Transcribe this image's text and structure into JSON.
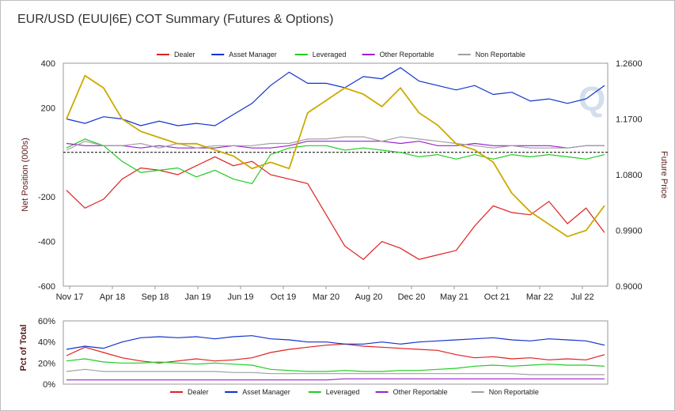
{
  "chart_data": [
    {
      "type": "line",
      "title": "EUR/USD (EUU|6E) COT Summary (Futures & Options)",
      "ylabel": "Net Position (000s)",
      "y2label": "Future Price",
      "ylim": [
        -600,
        400
      ],
      "y2lim": [
        0.9,
        1.26
      ],
      "yticks": [
        400,
        200,
        -200,
        -400,
        -600
      ],
      "yticks_right": [
        "1.2600",
        "1.1700",
        "1.0800",
        "0.9900",
        "0.9000"
      ],
      "xticks": [
        "Nov 17",
        "Apr 18",
        "Sep 18",
        "Jan 19",
        "Jun 19",
        "Oct 19",
        "Mar 20",
        "Aug 20",
        "Dec 20",
        "May 21",
        "Oct 21",
        "Mar 22",
        "Jul 22"
      ],
      "legend": "top",
      "zero_line": true,
      "series": [
        {
          "name": "Dealer",
          "color": "#e02020",
          "values": [
            -170,
            -250,
            -210,
            -120,
            -70,
            -80,
            -100,
            -60,
            -20,
            -60,
            -40,
            -100,
            -120,
            -140,
            -280,
            -420,
            -480,
            -400,
            -430,
            -480,
            -460,
            -440,
            -330,
            -240,
            -270,
            -280,
            -220,
            -320,
            -250,
            -360
          ]
        },
        {
          "name": "Asset Manager",
          "color": "#1133cc",
          "values": [
            150,
            130,
            160,
            150,
            120,
            140,
            120,
            130,
            120,
            170,
            220,
            300,
            360,
            310,
            310,
            290,
            340,
            330,
            380,
            320,
            300,
            280,
            300,
            260,
            270,
            230,
            240,
            220,
            240,
            300
          ]
        },
        {
          "name": "Leveraged",
          "color": "#22cc22",
          "values": [
            20,
            60,
            30,
            -40,
            -90,
            -80,
            -70,
            -110,
            -80,
            -120,
            -140,
            -10,
            20,
            30,
            30,
            10,
            20,
            10,
            0,
            -20,
            -10,
            -30,
            -10,
            -30,
            -10,
            -20,
            -10,
            -20,
            -30,
            -10
          ]
        },
        {
          "name": "Other Reportable",
          "color": "#9922cc",
          "values": [
            40,
            30,
            30,
            30,
            20,
            30,
            20,
            20,
            20,
            30,
            20,
            20,
            30,
            50,
            50,
            50,
            50,
            50,
            40,
            50,
            30,
            30,
            40,
            30,
            30,
            30,
            30,
            20,
            30,
            30
          ]
        },
        {
          "name": "Non Reportable",
          "color": "#a0a0a0",
          "values": [
            10,
            50,
            30,
            30,
            40,
            20,
            40,
            20,
            30,
            30,
            30,
            40,
            40,
            60,
            60,
            70,
            70,
            50,
            70,
            60,
            50,
            40,
            30,
            20,
            30,
            20,
            20,
            20,
            30,
            30
          ]
        }
      ],
      "price": {
        "color": "#ccaa00",
        "values": [
          1.17,
          1.24,
          1.22,
          1.17,
          1.15,
          1.14,
          1.13,
          1.13,
          1.12,
          1.11,
          1.09,
          1.1,
          1.09,
          1.18,
          1.2,
          1.22,
          1.21,
          1.19,
          1.22,
          1.18,
          1.16,
          1.13,
          1.12,
          1.1,
          1.05,
          1.02,
          1.0,
          0.98,
          0.99,
          1.03
        ]
      }
    },
    {
      "type": "line",
      "ylabel": "Pct of Total",
      "ylim": [
        0,
        60
      ],
      "yticks": [
        "60%",
        "40%",
        "20%",
        "0%"
      ],
      "legend": "bottom",
      "series": [
        {
          "name": "Dealer",
          "color": "#e02020",
          "values": [
            27,
            35,
            30,
            25,
            22,
            20,
            22,
            24,
            22,
            23,
            25,
            30,
            33,
            35,
            37,
            38,
            36,
            35,
            34,
            33,
            32,
            28,
            25,
            26,
            24,
            25,
            23,
            24,
            23,
            28
          ]
        },
        {
          "name": "Asset Manager",
          "color": "#1133cc",
          "values": [
            33,
            36,
            34,
            40,
            44,
            45,
            44,
            45,
            43,
            45,
            46,
            43,
            42,
            40,
            40,
            38,
            38,
            40,
            38,
            40,
            41,
            42,
            43,
            44,
            42,
            41,
            43,
            42,
            41,
            37
          ]
        },
        {
          "name": "Leveraged",
          "color": "#22cc22",
          "values": [
            22,
            24,
            21,
            20,
            20,
            21,
            20,
            19,
            20,
            19,
            18,
            14,
            13,
            12,
            12,
            13,
            12,
            12,
            13,
            13,
            14,
            15,
            17,
            18,
            17,
            18,
            19,
            18,
            18,
            17
          ]
        },
        {
          "name": "Other Reportable",
          "color": "#9922cc",
          "values": [
            4,
            4,
            4,
            4,
            4,
            4,
            4,
            4,
            4,
            4,
            4,
            4,
            4,
            4,
            4,
            5,
            5,
            5,
            5,
            5,
            5,
            5,
            5,
            5,
            5,
            5,
            5,
            5,
            5,
            5
          ]
        },
        {
          "name": "Non Reportable",
          "color": "#a0a0a0",
          "values": [
            12,
            14,
            12,
            12,
            12,
            12,
            12,
            12,
            12,
            11,
            11,
            10,
            10,
            10,
            10,
            10,
            10,
            10,
            10,
            10,
            10,
            10,
            10,
            10,
            10,
            9,
            9,
            9,
            9,
            9
          ]
        }
      ]
    }
  ],
  "watermark": "Q"
}
